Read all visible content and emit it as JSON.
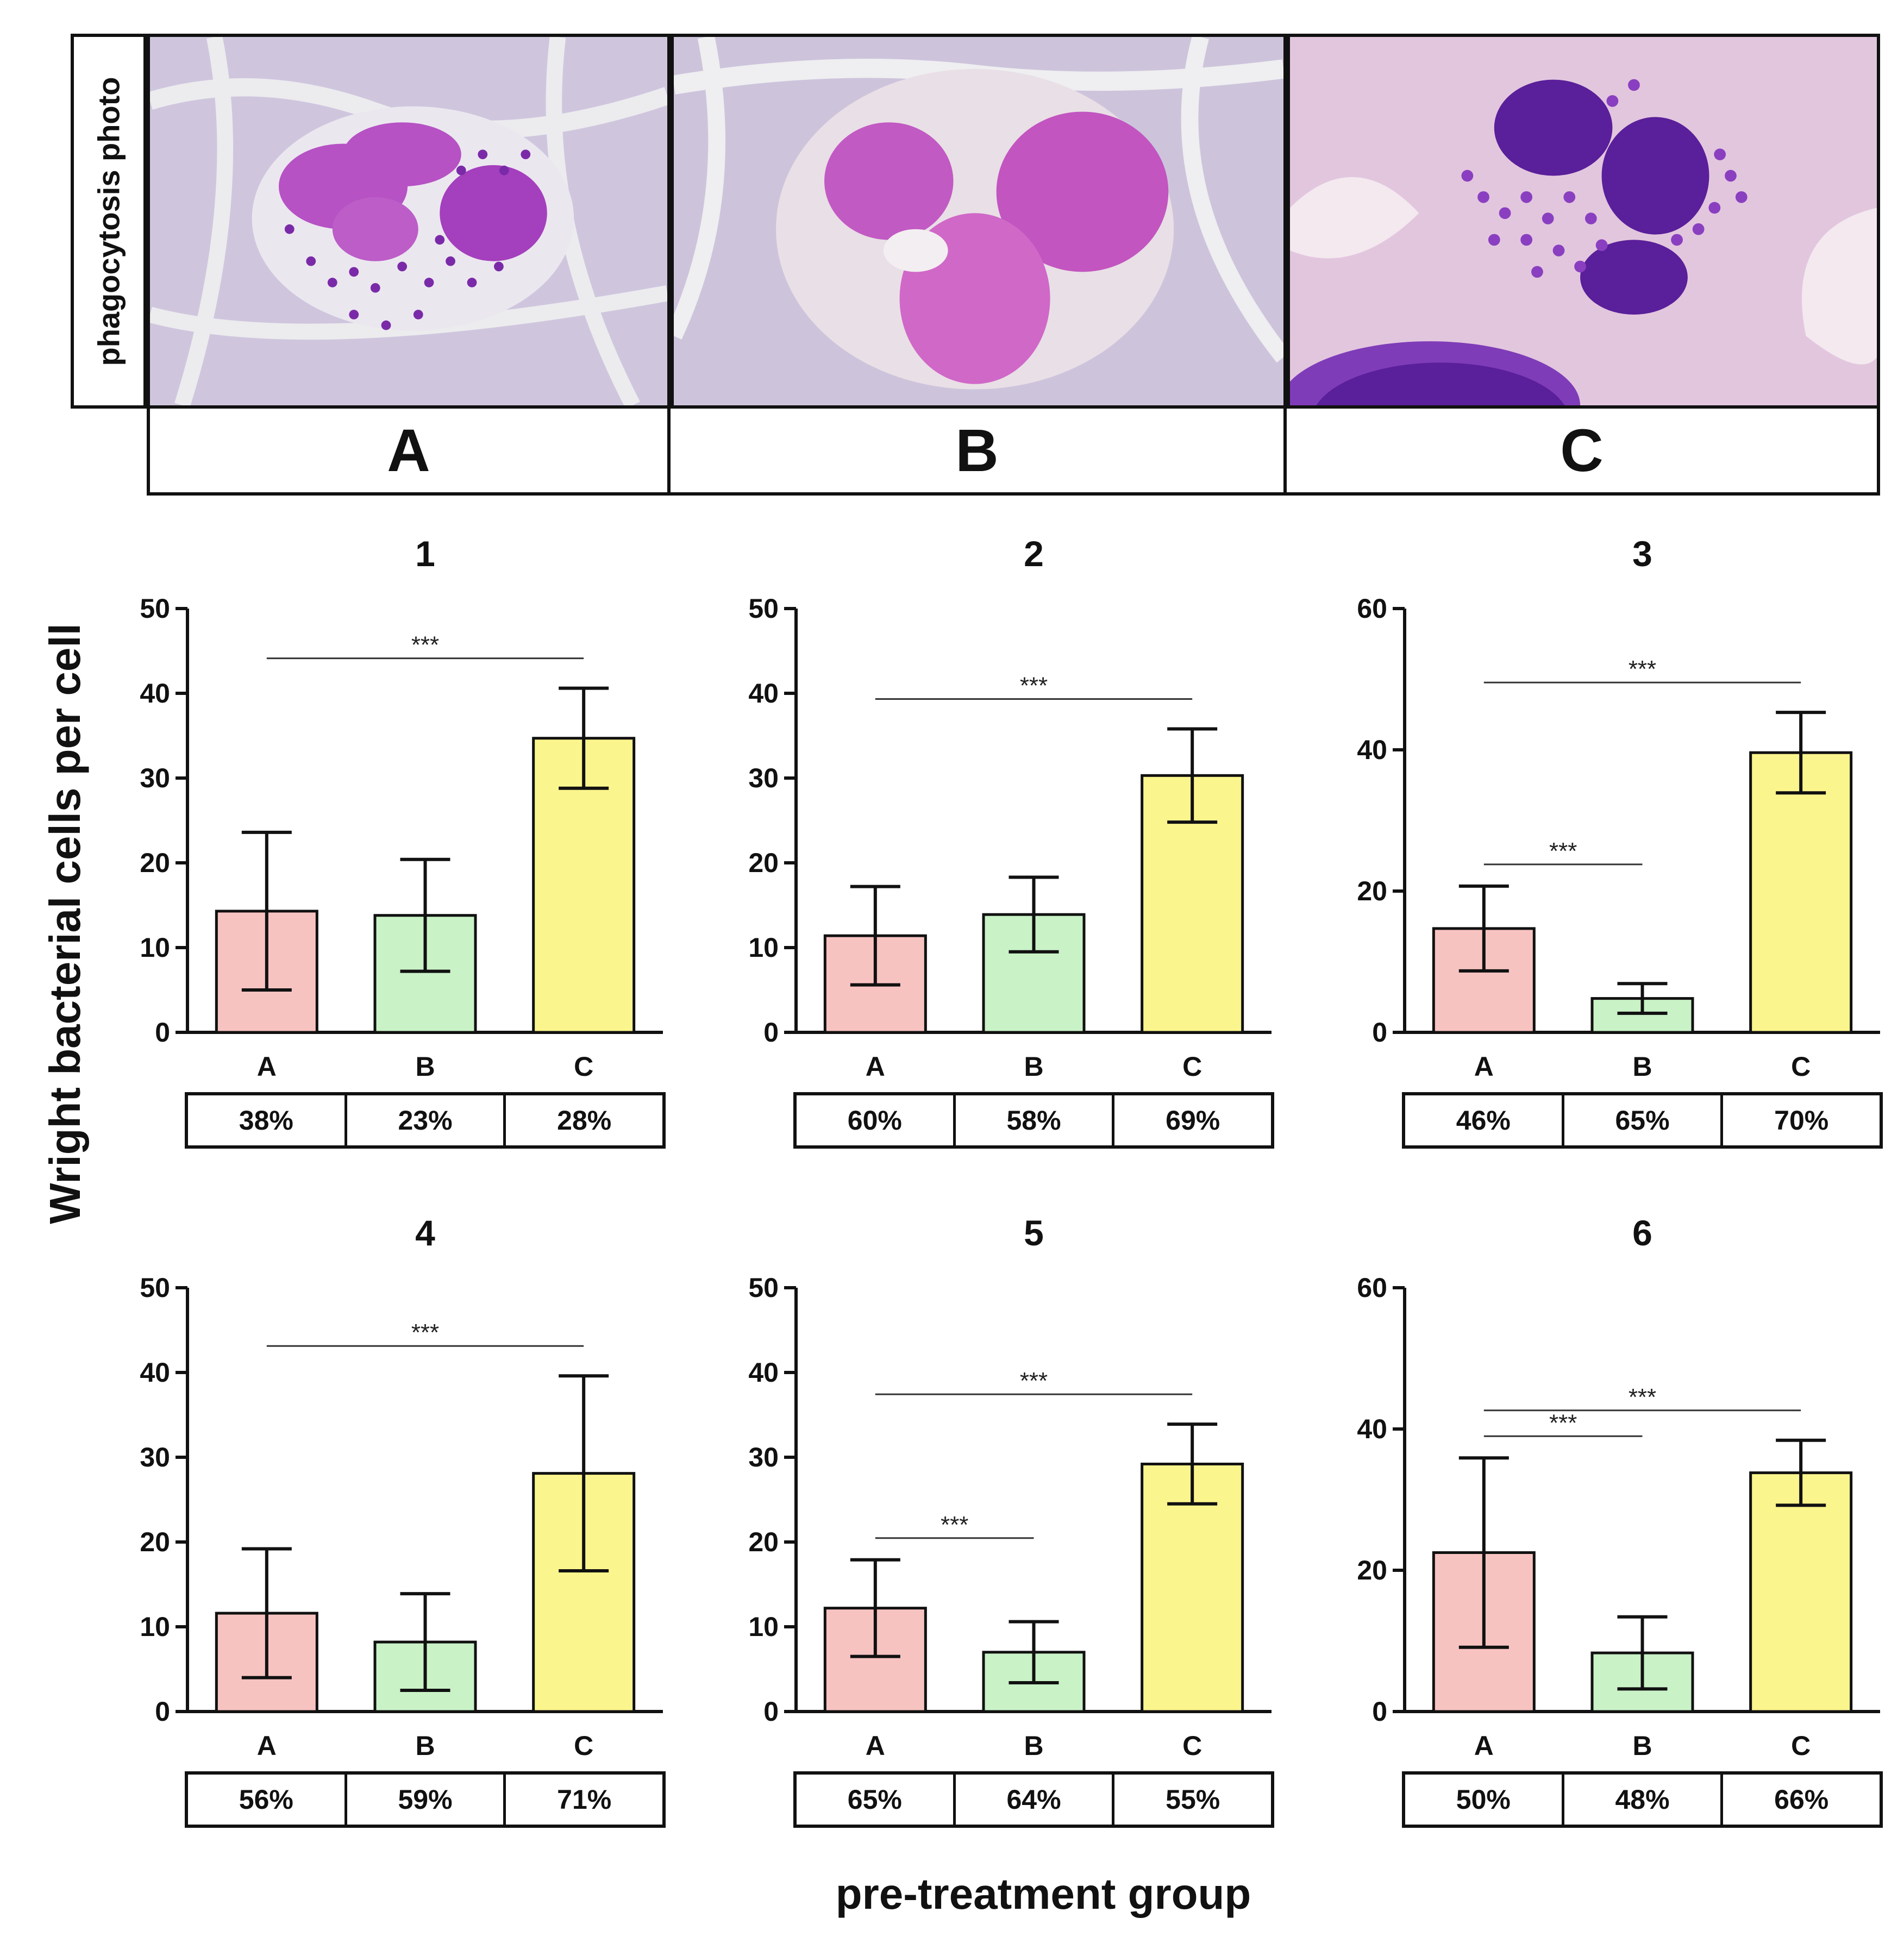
{
  "colors": {
    "bar_A": "#f7c3c1",
    "bar_B": "#c9f2c7",
    "bar_C": "#fbf58d",
    "outline": "#111111",
    "stain": "#a845c6",
    "stain_dark": "#6a1fa6"
  },
  "photo_section": {
    "side_label": "phagocytosis photo",
    "panels": [
      {
        "label": "A",
        "icon": "phagocyte-photo-a"
      },
      {
        "label": "B",
        "icon": "phagocyte-photo-b"
      },
      {
        "label": "C",
        "icon": "phagocyte-photo-c"
      }
    ]
  },
  "axis_titles": {
    "y": "Wright bacterial cells per cell",
    "x": "pre-treatment group"
  },
  "chart_data": [
    {
      "type": "bar",
      "title": "1",
      "categories": [
        "A",
        "B",
        "C"
      ],
      "values": [
        14.3,
        13.8,
        34.7
      ],
      "error": [
        9.3,
        6.6,
        5.9
      ],
      "ylim": [
        0,
        50
      ],
      "yticks": [
        0,
        10,
        20,
        30,
        40,
        50
      ],
      "significance": [
        {
          "from": "A",
          "to": "C",
          "label": "***"
        }
      ],
      "percentages": [
        "38%",
        "23%",
        "28%"
      ]
    },
    {
      "type": "bar",
      "title": "2",
      "categories": [
        "A",
        "B",
        "C"
      ],
      "values": [
        11.4,
        13.9,
        30.3
      ],
      "error": [
        5.8,
        4.4,
        5.5
      ],
      "ylim": [
        0,
        50
      ],
      "yticks": [
        0,
        10,
        20,
        30,
        40,
        50
      ],
      "significance": [
        {
          "from": "A",
          "to": "C",
          "label": "***"
        }
      ],
      "percentages": [
        "60%",
        "58%",
        "69%"
      ]
    },
    {
      "type": "bar",
      "title": "3",
      "categories": [
        "A",
        "B",
        "C"
      ],
      "values": [
        14.7,
        4.8,
        39.6
      ],
      "error": [
        6.0,
        2.1,
        5.7
      ],
      "ylim": [
        0,
        60
      ],
      "yticks": [
        0,
        20,
        40,
        60
      ],
      "significance": [
        {
          "from": "A",
          "to": "C",
          "label": "***"
        },
        {
          "from": "A",
          "to": "B",
          "label": "***"
        }
      ],
      "percentages": [
        "46%",
        "65%",
        "70%"
      ]
    },
    {
      "type": "bar",
      "title": "4",
      "categories": [
        "A",
        "B",
        "C"
      ],
      "values": [
        11.6,
        8.2,
        28.1
      ],
      "error": [
        7.6,
        5.7,
        11.5
      ],
      "ylim": [
        0,
        50
      ],
      "yticks": [
        0,
        10,
        20,
        30,
        40,
        50
      ],
      "significance": [
        {
          "from": "A",
          "to": "C",
          "label": "***"
        }
      ],
      "percentages": [
        "56%",
        "59%",
        "71%"
      ]
    },
    {
      "type": "bar",
      "title": "5",
      "categories": [
        "A",
        "B",
        "C"
      ],
      "values": [
        12.2,
        7.0,
        29.2
      ],
      "error": [
        5.7,
        3.6,
        4.7
      ],
      "ylim": [
        0,
        50
      ],
      "yticks": [
        0,
        10,
        20,
        30,
        40,
        50
      ],
      "significance": [
        {
          "from": "A",
          "to": "C",
          "label": "***"
        },
        {
          "from": "A",
          "to": "B",
          "label": "***"
        }
      ],
      "percentages": [
        "65%",
        "64%",
        "55%"
      ]
    },
    {
      "type": "bar",
      "title": "6",
      "categories": [
        "A",
        "B",
        "C"
      ],
      "values": [
        22.5,
        8.3,
        33.8
      ],
      "error": [
        13.4,
        5.1,
        4.6
      ],
      "ylim": [
        0,
        60
      ],
      "yticks": [
        0,
        20,
        40,
        60
      ],
      "significance": [
        {
          "from": "A",
          "to": "C",
          "label": "***"
        },
        {
          "from": "A",
          "to": "B",
          "label": "***"
        }
      ],
      "percentages": [
        "50%",
        "48%",
        "66%"
      ]
    }
  ]
}
